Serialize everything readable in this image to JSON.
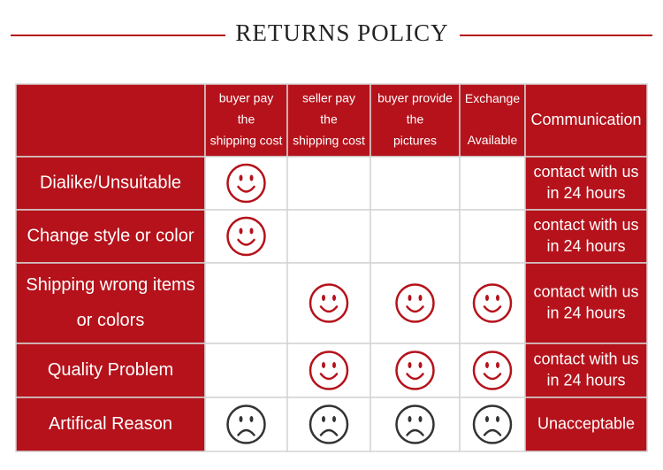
{
  "header": {
    "title": "RETURNS POLICY"
  },
  "table": {
    "columns": [
      [
        "buyer pay",
        "the",
        "shipping cost"
      ],
      [
        "seller pay",
        "the",
        "shipping cost"
      ],
      [
        "buyer provide",
        "the",
        "pictures"
      ],
      [
        "Exchange",
        "Available"
      ],
      [
        "Communication"
      ]
    ],
    "rows": [
      {
        "label": [
          "Dialike/Unsuitable"
        ],
        "communication": [
          "contact with us",
          "in 24 hours"
        ]
      },
      {
        "label": [
          "Change style or color"
        ],
        "communication": [
          "contact with us",
          "in 24 hours"
        ]
      },
      {
        "label": [
          "Shipping wrong items",
          "or colors"
        ],
        "communication": [
          "contact with us",
          "in 24 hours"
        ]
      },
      {
        "label": [
          "Quality Problem"
        ],
        "communication": [
          "contact with us",
          "in 24 hours"
        ]
      },
      {
        "label": [
          "Artifical Reason"
        ],
        "communication": [
          "Unacceptable"
        ]
      }
    ]
  }
}
